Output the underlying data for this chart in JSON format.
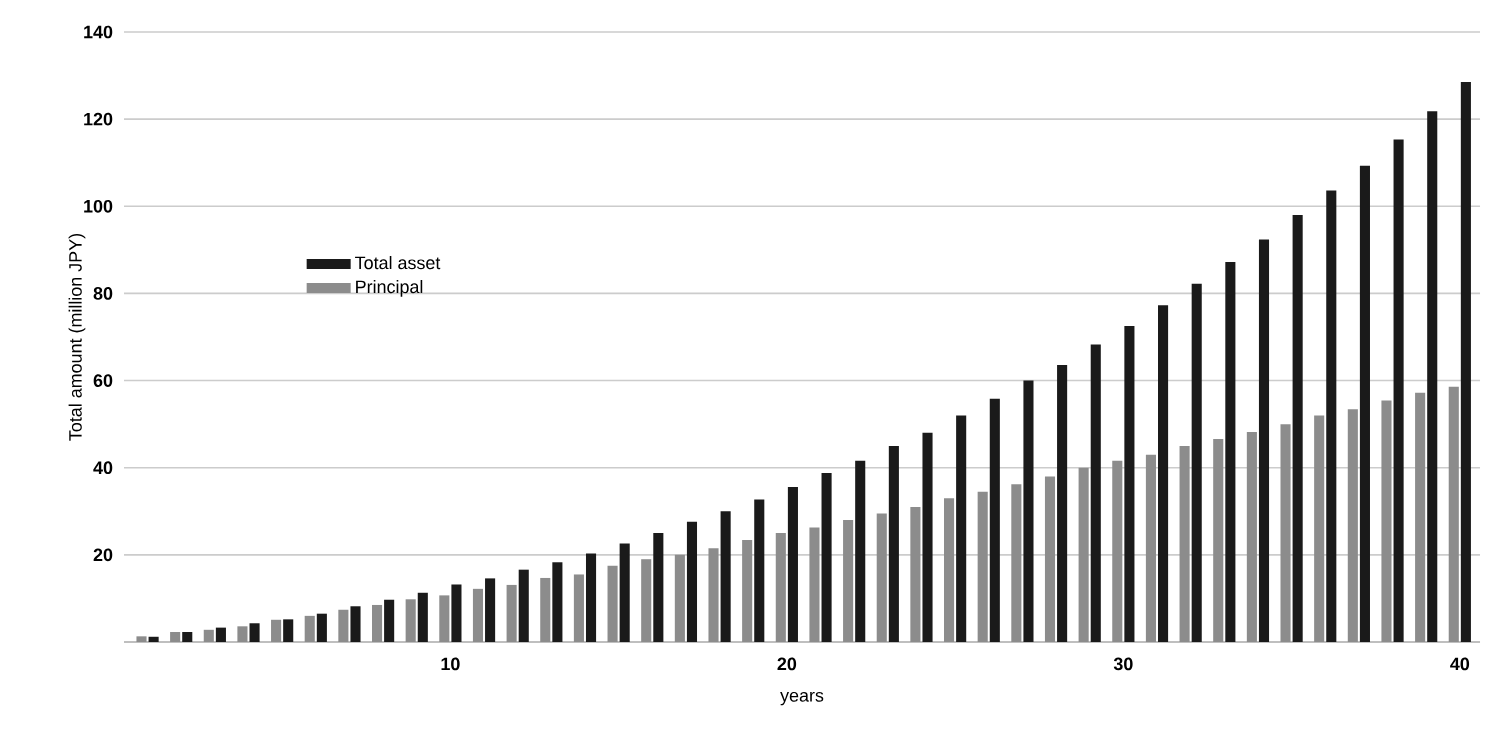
{
  "chart_data": {
    "type": "bar",
    "xlabel": "years",
    "ylabel": "Total amount (million JPY)",
    "x": [
      1,
      2,
      3,
      4,
      5,
      6,
      7,
      8,
      9,
      10,
      11,
      12,
      13,
      14,
      15,
      16,
      17,
      18,
      19,
      20,
      21,
      22,
      23,
      24,
      25,
      26,
      27,
      28,
      29,
      30,
      31,
      32,
      33,
      34,
      35,
      36,
      37,
      38,
      39,
      40
    ],
    "series": [
      {
        "name": "Principal",
        "color": "#8c8c8c",
        "values": [
          1.3,
          2.3,
          2.8,
          3.6,
          5.1,
          6.0,
          7.4,
          8.5,
          9.8,
          10.7,
          12.2,
          13.1,
          14.7,
          15.5,
          17.5,
          19,
          20,
          21.5,
          23.4,
          25,
          26.3,
          28,
          29.5,
          31,
          33,
          34.5,
          36.2,
          38,
          40,
          41.6,
          43,
          45,
          46.6,
          48.2,
          50,
          52,
          53.4,
          55.4,
          57.2,
          58.6
        ]
      },
      {
        "name": "Total asset",
        "color": "#1a1a1a",
        "values": [
          1.2,
          2.3,
          3.3,
          4.3,
          5.2,
          6.5,
          8.2,
          9.7,
          11.3,
          13.2,
          14.6,
          16.6,
          18.3,
          20.3,
          22.6,
          25,
          27.6,
          30,
          32.7,
          35.6,
          38.8,
          41.6,
          45,
          48,
          52,
          55.8,
          60,
          63.6,
          68.3,
          72.5,
          77.3,
          82.2,
          87.2,
          92.4,
          98,
          103.6,
          109.3,
          115.3,
          121.8,
          128.5
        ]
      }
    ],
    "xlim": [
      0.3,
      40.6
    ],
    "xticks": [
      10,
      20,
      30,
      40
    ],
    "ylim": [
      0,
      140
    ],
    "yticks": [
      20,
      40,
      60,
      80,
      100,
      120,
      140
    ],
    "grid": "y",
    "legend": "left"
  }
}
